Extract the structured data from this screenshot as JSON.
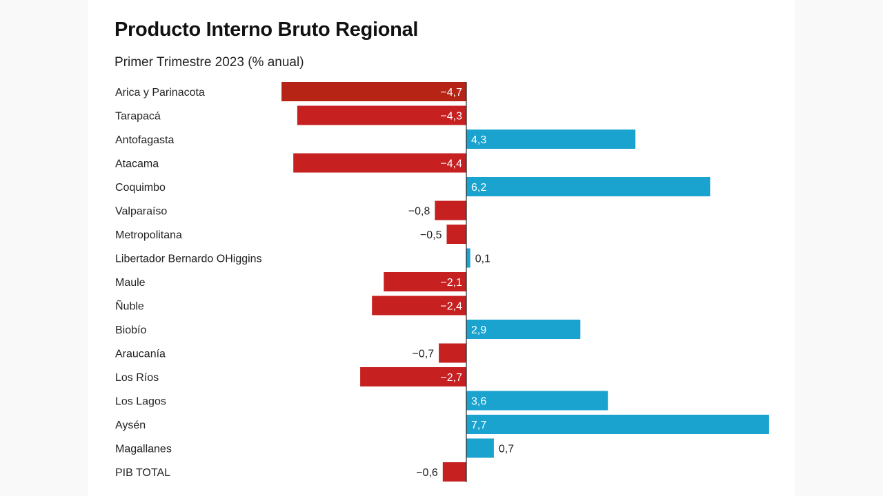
{
  "chart_data": {
    "type": "bar",
    "orientation": "horizontal",
    "title": "Producto Interno Bruto Regional",
    "subtitle": "Primer Trimestre 2023 (% anual)",
    "categories": [
      "Arica y Parinacota",
      "Tarapacá",
      "Antofagasta",
      "Atacama",
      "Coquimbo",
      "Valparaíso",
      "Metropolitana",
      "Libertador Bernardo OHiggins",
      "Maule",
      "Ñuble",
      "Biobío",
      "Araucanía",
      "Los Ríos",
      "Los Lagos",
      "Aysén",
      "Magallanes",
      "PIB TOTAL"
    ],
    "values": [
      -4.7,
      -4.3,
      4.3,
      -4.4,
      6.2,
      -0.8,
      -0.5,
      0.1,
      -2.1,
      -2.4,
      2.9,
      -0.7,
      -2.7,
      3.6,
      7.7,
      0.7,
      -0.6
    ],
    "value_labels": [
      "−4,7",
      "−4,3",
      "4,3",
      "−4,4",
      "6,2",
      "−0,8",
      "−0,5",
      "0,1",
      "−2,1",
      "−2,4",
      "2,9",
      "−0,7",
      "−2,7",
      "3,6",
      "7,7",
      "0,7",
      "−0,6"
    ],
    "xlim": [
      -4.7,
      7.7
    ],
    "colors": {
      "negative": "#c62020",
      "negative_first": "#b52414",
      "positive": "#1aa3cf",
      "axis": "#222222",
      "category_text": "#222222",
      "label_inside": "#ffffff",
      "label_outside": "#222222"
    }
  }
}
